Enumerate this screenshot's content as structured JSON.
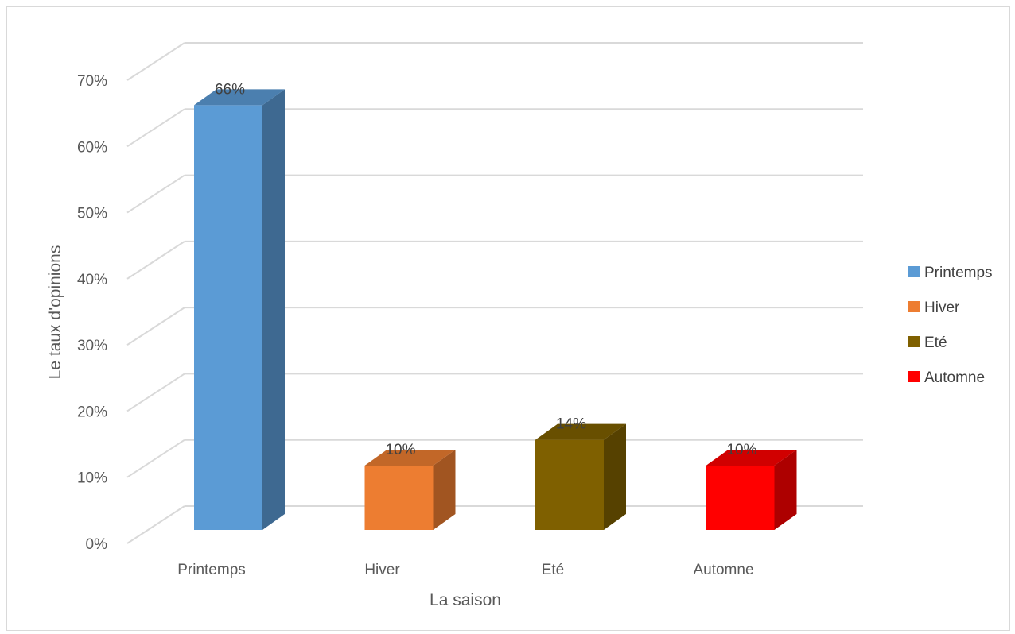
{
  "chart_data": {
    "type": "bar",
    "title": "",
    "xlabel": "La saison",
    "ylabel": "Le taux d'opinions",
    "categories": [
      "Printemps",
      "Hiver",
      "Eté",
      "Automne"
    ],
    "values": [
      66,
      10,
      14,
      10
    ],
    "data_labels": [
      "66%",
      "10%",
      "14%",
      "10%"
    ],
    "ylim": [
      0,
      70
    ],
    "y_ticks": [
      0,
      10,
      20,
      30,
      40,
      50,
      60,
      70
    ],
    "y_tick_labels": [
      "0%",
      "10%",
      "20%",
      "30%",
      "40%",
      "50%",
      "60%",
      "70%"
    ],
    "grid": true,
    "three_d": true,
    "legend": {
      "placement": "right",
      "entries": [
        "Printemps",
        "Hiver",
        "Eté",
        "Automne"
      ]
    },
    "colors": {
      "Printemps": "#5b9bd5",
      "Hiver": "#ed7d31",
      "Eté": "#7f6000",
      "Automne": "#ff0000"
    }
  }
}
